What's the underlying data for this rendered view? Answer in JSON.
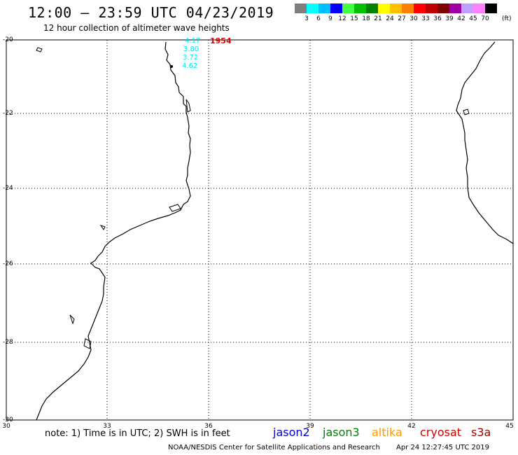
{
  "header": {
    "title": "12:00 – 23:59 UTC 04/23/2019",
    "subtitle": "12 hour collection of altimeter wave heights"
  },
  "colorbar": {
    "unit": "(ft)",
    "swatches": [
      "#7f7f7f",
      "#00ffff",
      "#00c0ff",
      "#0000ff",
      "#40ff40",
      "#00c000",
      "#008000",
      "#ffff00",
      "#ffc000",
      "#ff8000",
      "#ff0000",
      "#c00000",
      "#800000",
      "#a000a0",
      "#c0a0ff",
      "#ff80ff",
      "#000000"
    ],
    "labels": [
      "3",
      "6",
      "9",
      "12",
      "15",
      "18",
      "21",
      "24",
      "27",
      "30",
      "33",
      "36",
      "39",
      "42",
      "45",
      "70"
    ]
  },
  "axes": {
    "y_ticks": [
      "-20",
      "-22",
      "-24",
      "-26",
      "-28",
      "-30"
    ],
    "x_ticks": [
      "30",
      "33",
      "36",
      "39",
      "42",
      "45"
    ]
  },
  "observations": {
    "values": [
      "4.17",
      "3.80",
      "3.72",
      "4.62"
    ],
    "track_id": "1954"
  },
  "footer": {
    "note": "note:  1) Time is in UTC;  2) SWH is in feet",
    "satellites": [
      {
        "name": "jason2",
        "color": "#0000cc"
      },
      {
        "name": "jason3",
        "color": "#008000"
      },
      {
        "name": "altika",
        "color": "#ff9900"
      },
      {
        "name": "cryosat",
        "color": "#cc0000"
      },
      {
        "name": "s3a",
        "color": "#990000"
      }
    ],
    "credit": "NOAA/NESDIS Center for Satellite Applications and Research",
    "timestamp": "Apr 24 12:27:45 UTC 2019"
  }
}
